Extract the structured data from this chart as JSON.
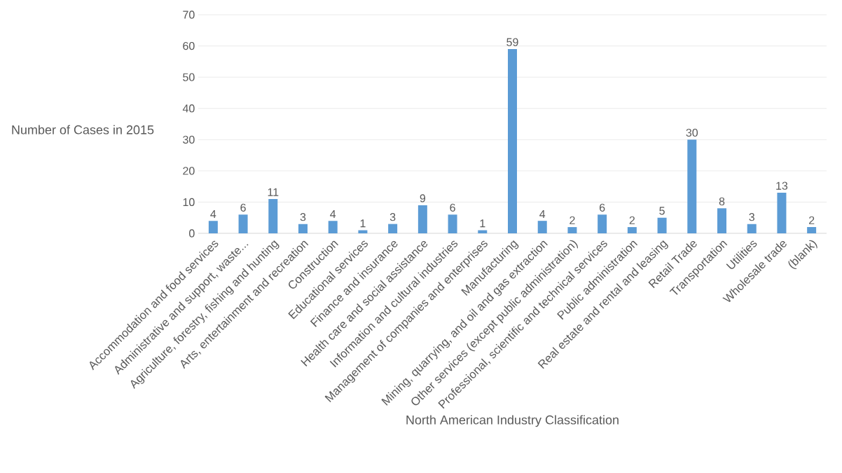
{
  "chart_data": {
    "type": "bar",
    "categories": [
      "Accommodation and food services",
      "Administrative and support, waste...",
      "Agriculture, forestry, fishing and hunting",
      "Arts, entertainment and recreation",
      "Construction",
      "Educational services",
      "Finance and insurance",
      "Health care and social assistance",
      "Information and cultural industries",
      "Management of companies and enterprises",
      "Manufacturing",
      "Mining, quarrying, and oil and gas extraction",
      "Other services (except public administration)",
      "Professional, scientific and technical services",
      "Public administration",
      "Real estate and rental and leasing",
      "Retail Trade",
      "Transportation",
      "Utilities",
      "Wholesale trade",
      "(blank)"
    ],
    "values": [
      4,
      6,
      11,
      3,
      4,
      1,
      3,
      9,
      6,
      1,
      59,
      4,
      2,
      6,
      2,
      5,
      30,
      8,
      3,
      13,
      2
    ],
    "color": "#5b9bd5",
    "xlabel": "North American Industry Classification",
    "ylabel": "Number of Cases in 2015",
    "ylim": [
      0,
      70
    ],
    "yticks": [
      0,
      10,
      20,
      30,
      40,
      50,
      60,
      70
    ],
    "grid": "y",
    "data_labels": true
  }
}
